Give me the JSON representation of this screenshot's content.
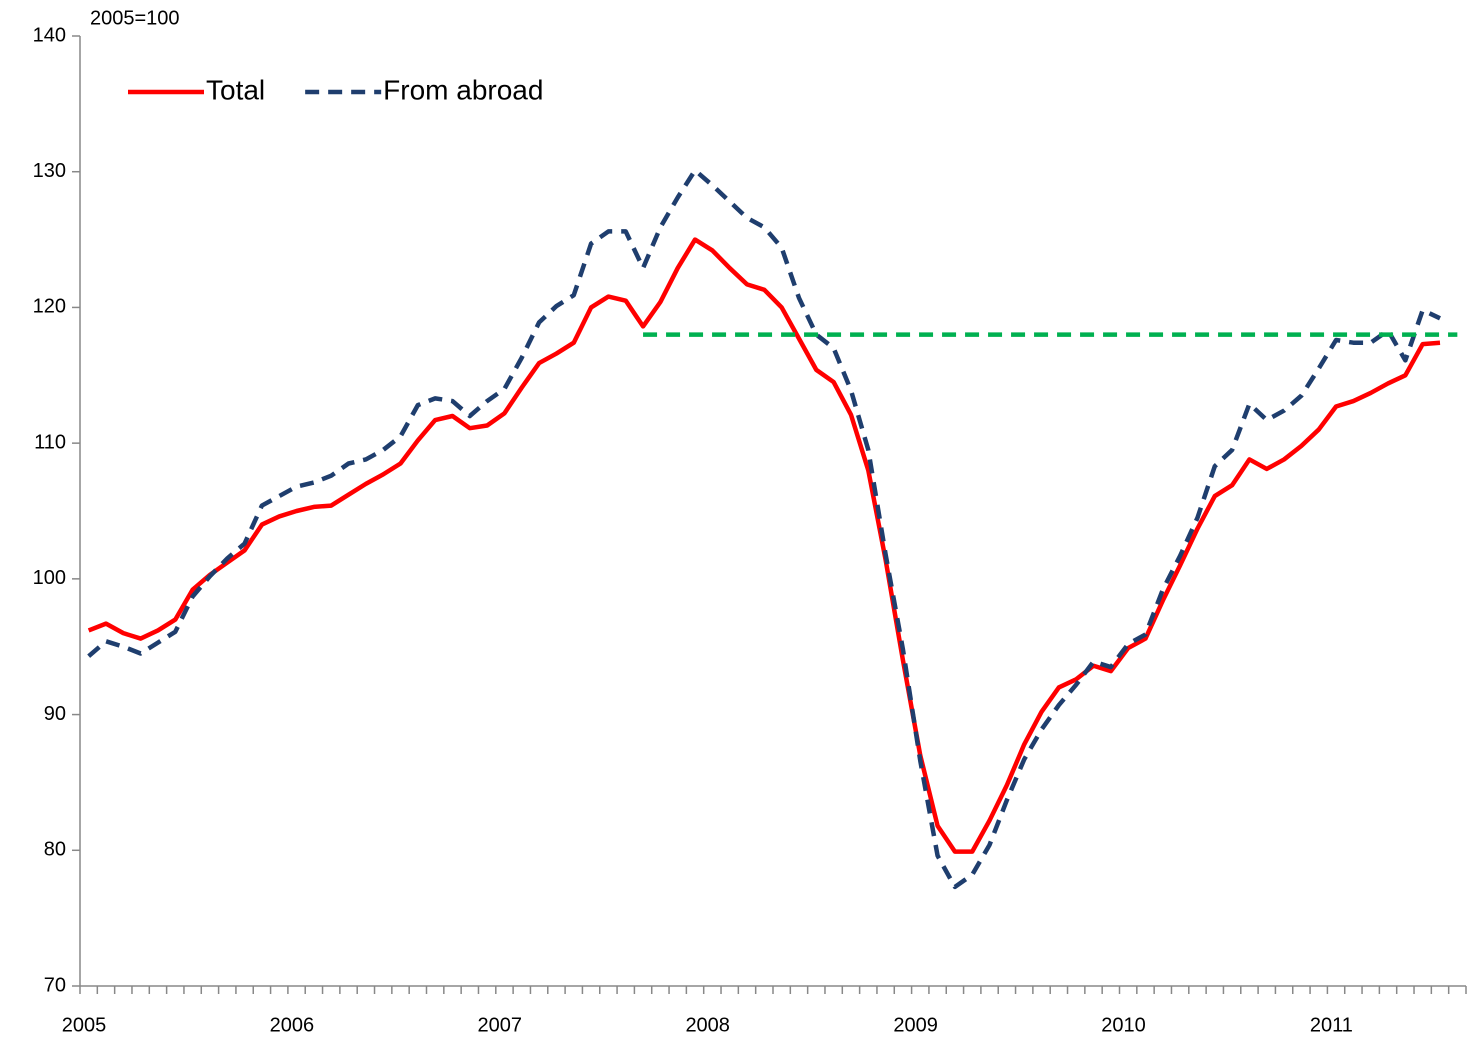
{
  "chart_data": {
    "type": "line",
    "y_unit_label": "2005=100",
    "categories": [
      "2005",
      null,
      null,
      null,
      null,
      null,
      null,
      null,
      null,
      null,
      null,
      null,
      "2006",
      null,
      null,
      null,
      null,
      null,
      null,
      null,
      null,
      null,
      null,
      null,
      "2007",
      null,
      null,
      null,
      null,
      null,
      null,
      null,
      null,
      null,
      null,
      null,
      "2008",
      null,
      null,
      null,
      null,
      null,
      null,
      null,
      null,
      null,
      null,
      null,
      "2009",
      null,
      null,
      null,
      null,
      null,
      null,
      null,
      null,
      null,
      null,
      null,
      "2010",
      null,
      null,
      null,
      null,
      null,
      null,
      null,
      null,
      null,
      null,
      null,
      "2011",
      null,
      null,
      null,
      null,
      null,
      null,
      null
    ],
    "series": [
      {
        "name": "Total",
        "color": "#ff0000",
        "line_style": "solid",
        "values": [
          96.2,
          96.7,
          96.0,
          95.6,
          96.2,
          97.0,
          99.2,
          100.3,
          101.2,
          102.1,
          104.0,
          104.6,
          105.0,
          105.3,
          105.4,
          106.2,
          107.0,
          107.7,
          108.5,
          110.2,
          111.7,
          112.0,
          111.1,
          111.3,
          112.2,
          114.1,
          115.9,
          116.6,
          117.4,
          120.0,
          120.8,
          120.5,
          118.6,
          120.4,
          122.9,
          125.0,
          124.2,
          122.9,
          121.7,
          121.3,
          120.0,
          117.7,
          115.4,
          114.5,
          112.1,
          108.0,
          101.4,
          94.0,
          87.0,
          81.8,
          79.9,
          79.9,
          82.2,
          84.8,
          87.8,
          90.2,
          92.0,
          92.6,
          93.6,
          93.2,
          94.9,
          95.6,
          98.4,
          101.0,
          103.7,
          106.1,
          106.9,
          108.8,
          108.1,
          108.8,
          109.8,
          111.0,
          112.7,
          113.1,
          113.7,
          114.4,
          115.0,
          117.3,
          117.4,
          null
        ]
      },
      {
        "name": "From abroad",
        "color": "#1f3e6e",
        "line_style": "dashed",
        "values": [
          94.3,
          95.4,
          95.0,
          94.5,
          95.3,
          96.1,
          98.7,
          100.2,
          101.5,
          102.6,
          105.4,
          106.1,
          106.8,
          107.1,
          107.6,
          108.5,
          108.8,
          109.5,
          110.5,
          112.8,
          113.3,
          113.1,
          112.0,
          113.1,
          114.0,
          116.3,
          118.9,
          120.1,
          120.9,
          124.7,
          125.6,
          125.6,
          122.9,
          125.9,
          128.1,
          130.1,
          129.0,
          127.8,
          126.6,
          125.9,
          124.4,
          120.7,
          118.0,
          117.0,
          113.9,
          109.5,
          101.8,
          94.8,
          86.6,
          79.6,
          77.3,
          78.2,
          80.4,
          83.7,
          86.7,
          88.9,
          90.7,
          92.2,
          93.9,
          93.5,
          95.2,
          95.9,
          99.2,
          101.7,
          104.5,
          108.3,
          109.5,
          112.9,
          111.7,
          112.4,
          113.5,
          115.5,
          117.6,
          117.4,
          117.4,
          118.3,
          116.1,
          119.8,
          119.2,
          null
        ]
      },
      {
        "color": "#00b050",
        "line_style": "dashed",
        "values": [
          null,
          null,
          null,
          null,
          null,
          null,
          null,
          null,
          null,
          null,
          null,
          null,
          null,
          null,
          null,
          null,
          null,
          null,
          null,
          null,
          null,
          null,
          null,
          null,
          null,
          null,
          null,
          null,
          null,
          null,
          null,
          null,
          118,
          118,
          118,
          118,
          118,
          118,
          118,
          118,
          118,
          118,
          118,
          118,
          118,
          118,
          118,
          118,
          118,
          118,
          118,
          118,
          118,
          118,
          118,
          118,
          118,
          118,
          118,
          118,
          118,
          118,
          118,
          118,
          118,
          118,
          118,
          118,
          118,
          118,
          118,
          118,
          118,
          118,
          118,
          118,
          118,
          118,
          118,
          118
        ]
      }
    ],
    "ylim": [
      70,
      140
    ],
    "yticks": [
      70,
      80,
      90,
      100,
      110,
      120,
      130,
      140
    ],
    "grid": false,
    "legend": "top-left"
  }
}
